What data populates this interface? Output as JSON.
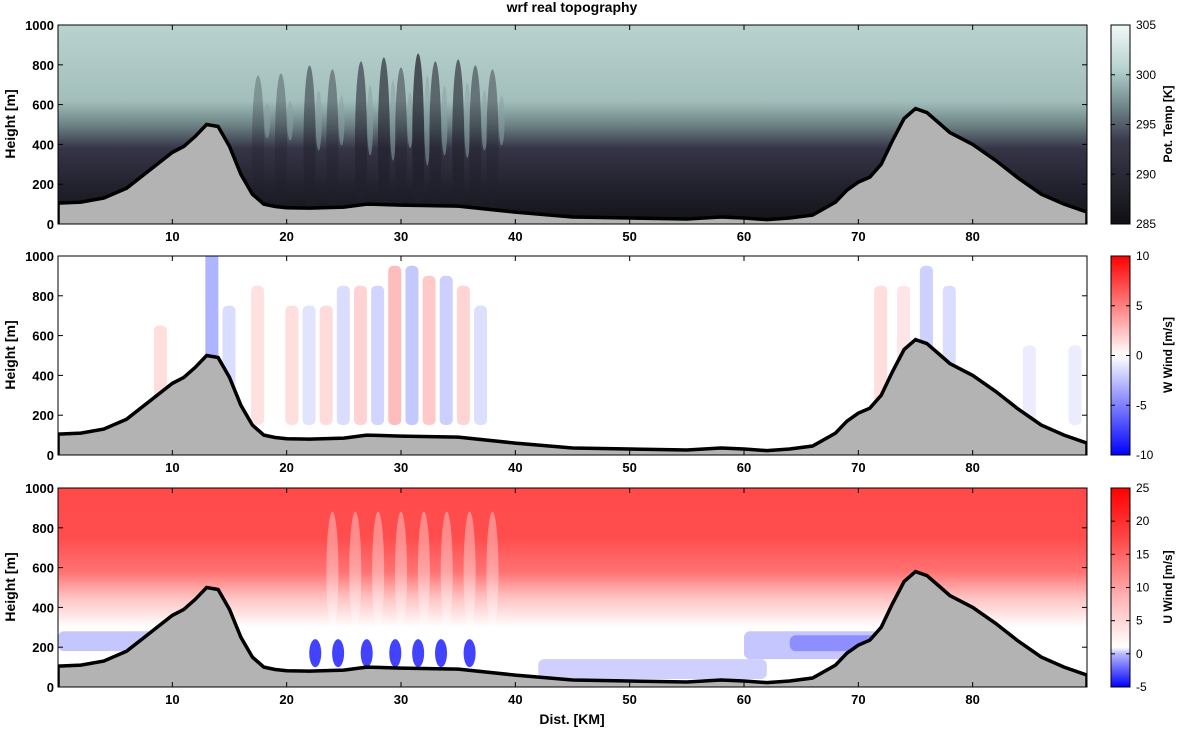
{
  "title": "wrf real topography",
  "colors": {
    "terrain_fill": "#b3b3b3",
    "terrain_line": "#000000",
    "theta_low": "#0f0f14",
    "theta_mid": "#3a3a4c",
    "theta_high": "#b6d2cf",
    "wind_neg": "#0000ff",
    "wind_zero": "#ffffff",
    "wind_pos": "#ff0000"
  },
  "chart_data": [
    {
      "type": "heatmap",
      "name": "potential temperature cross-section",
      "xlabel": "",
      "ylabel": "Height [m]",
      "colorbar_label": "Pot. Temp [K]",
      "xlim": [
        0,
        90
      ],
      "ylim": [
        0,
        1000
      ],
      "xticks": [
        10,
        20,
        30,
        40,
        50,
        60,
        70,
        80
      ],
      "yticks": [
        0,
        200,
        400,
        600,
        800,
        1000
      ],
      "clim": [
        285,
        305
      ],
      "cticks": [
        285,
        290,
        295,
        300,
        305
      ]
    },
    {
      "type": "heatmap",
      "name": "vertical wind cross-section",
      "xlabel": "",
      "ylabel": "Height [m]",
      "colorbar_label": "W Wind [m/s]",
      "xlim": [
        0,
        90
      ],
      "ylim": [
        0,
        1000
      ],
      "xticks": [
        10,
        20,
        30,
        40,
        50,
        60,
        70,
        80
      ],
      "yticks": [
        0,
        200,
        400,
        600,
        800,
        1000
      ],
      "clim": [
        -10,
        10
      ],
      "cticks": [
        -10,
        -5,
        0,
        5,
        10
      ]
    },
    {
      "type": "heatmap",
      "name": "horizontal wind cross-section",
      "xlabel": "Dist. [KM]",
      "ylabel": "Height [m]",
      "colorbar_label": "U Wind [m/s]",
      "xlim": [
        0,
        90
      ],
      "ylim": [
        0,
        1000
      ],
      "xticks": [
        10,
        20,
        30,
        40,
        50,
        60,
        70,
        80
      ],
      "yticks": [
        0,
        200,
        400,
        600,
        800,
        1000
      ],
      "clim": [
        -5,
        25
      ],
      "cticks": [
        -5,
        0,
        5,
        10,
        15,
        20,
        25
      ]
    }
  ],
  "terrain": {
    "x": [
      0,
      2,
      4,
      6,
      8,
      10,
      11,
      12,
      13,
      14,
      15,
      16,
      17,
      18,
      19,
      20,
      22,
      25,
      27,
      30,
      35,
      40,
      45,
      50,
      55,
      58,
      60,
      62,
      64,
      66,
      68,
      69,
      70,
      71,
      72,
      73,
      74,
      75,
      76,
      77,
      78,
      80,
      82,
      84,
      86,
      88,
      90
    ],
    "height": [
      105,
      110,
      130,
      180,
      270,
      360,
      390,
      440,
      500,
      490,
      390,
      250,
      150,
      100,
      88,
      82,
      80,
      85,
      100,
      95,
      90,
      60,
      35,
      30,
      25,
      35,
      30,
      22,
      30,
      45,
      110,
      170,
      210,
      235,
      300,
      420,
      530,
      580,
      560,
      510,
      460,
      400,
      320,
      230,
      150,
      100,
      60
    ]
  }
}
